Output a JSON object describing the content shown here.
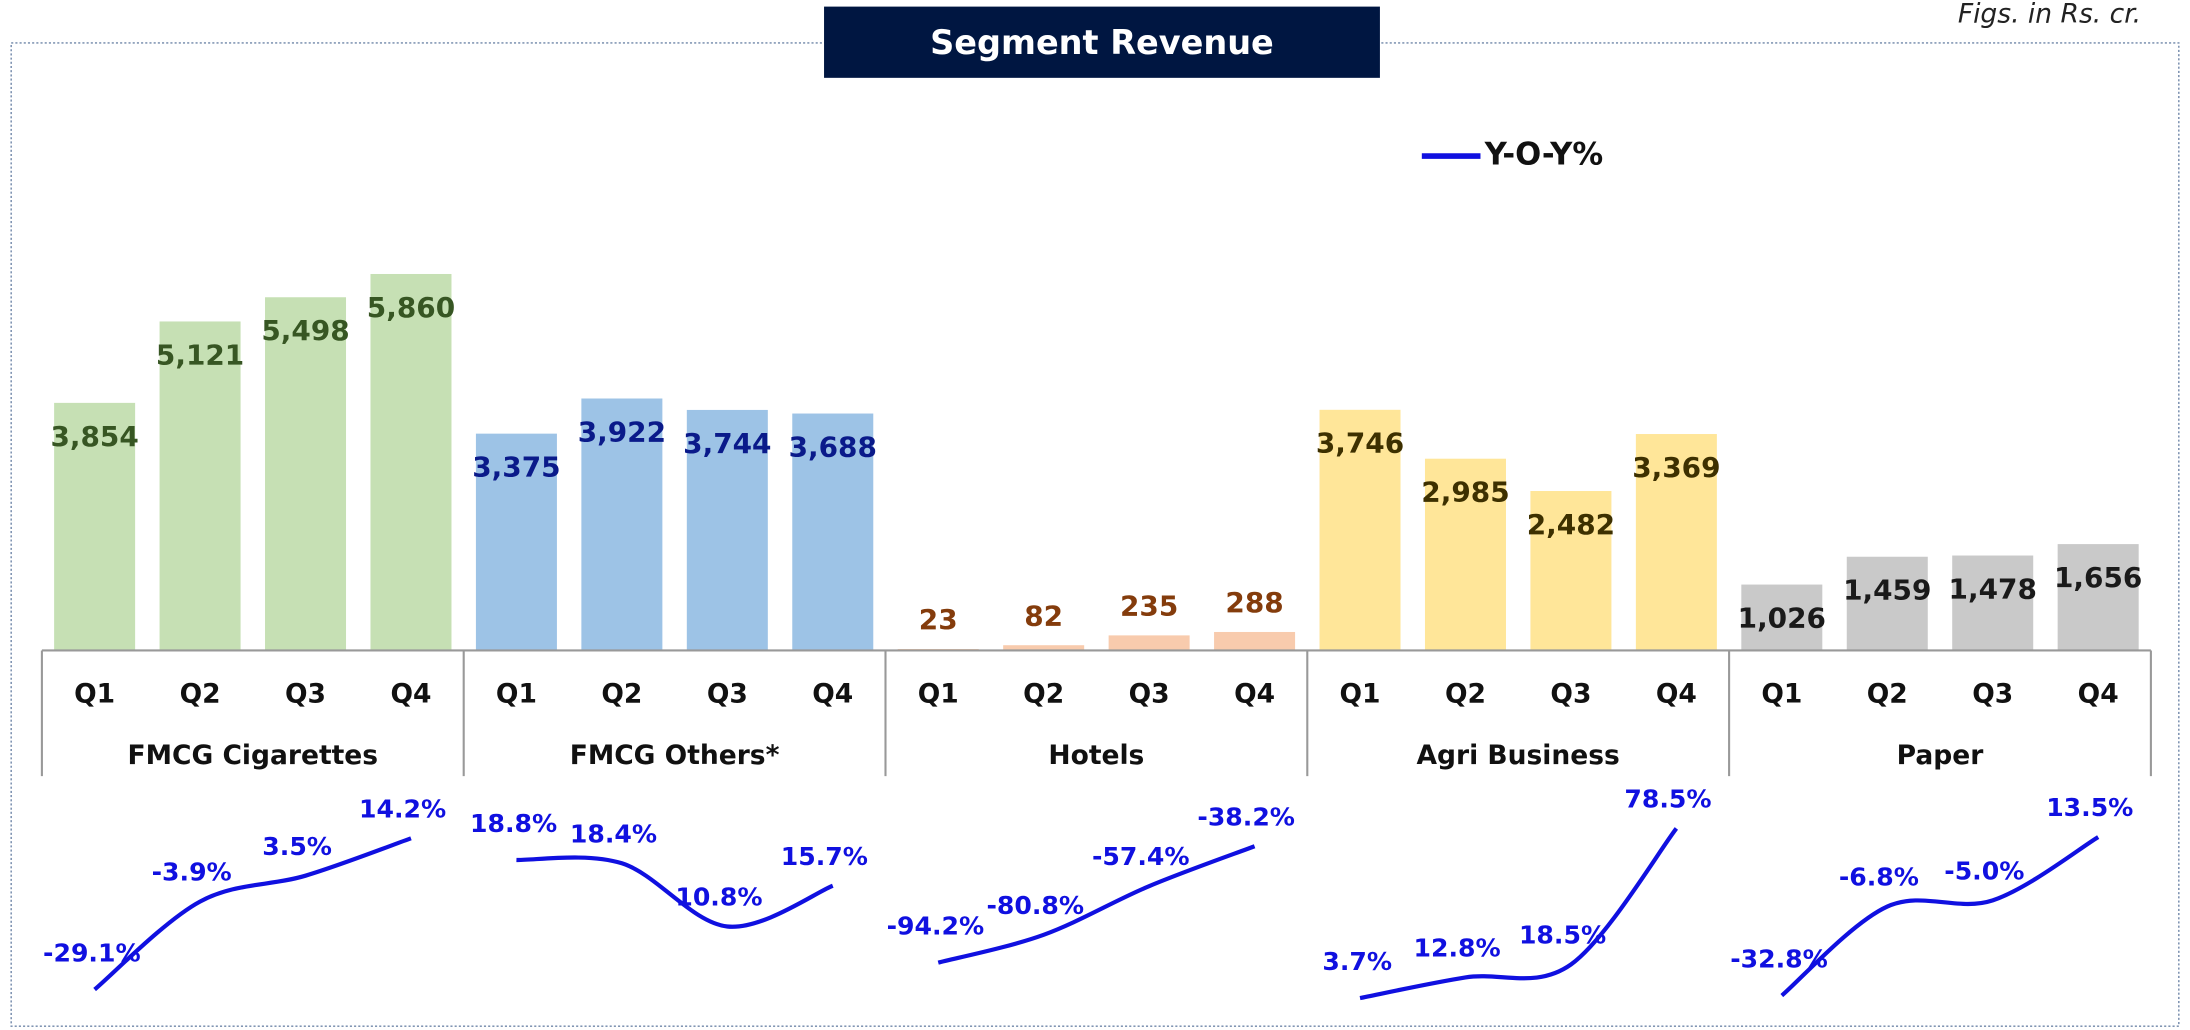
{
  "chart_data": {
    "type": "bar",
    "title": "Segment Revenue",
    "note": "Figs. in Rs. cr.",
    "legend": "Y-O-Y%",
    "line_color": "#1010e0",
    "ylim": [
      0,
      6000
    ],
    "groups": [
      {
        "name": "FMCG Cigarettes",
        "color": "#c6e0b4",
        "label_color": "#375623",
        "categories": [
          "Q1",
          "Q2",
          "Q3",
          "Q4"
        ],
        "values": [
          3854,
          5121,
          5498,
          5860
        ],
        "value_labels": [
          "3,854",
          "5,121",
          "5,498",
          "5,860"
        ],
        "yoy": [
          -29.1,
          -3.9,
          3.5,
          14.2
        ],
        "yoy_labels": [
          "-29.1%",
          "-3.9%",
          "3.5%",
          "14.2%"
        ],
        "yoy_ylim": [
          -32,
          18
        ]
      },
      {
        "name": "FMCG Others*",
        "color": "#9dc3e6",
        "label_color": "#0a1a8a",
        "categories": [
          "Q1",
          "Q2",
          "Q3",
          "Q4"
        ],
        "values": [
          3375,
          3922,
          3744,
          3688
        ],
        "value_labels": [
          "3,375",
          "3,922",
          "3,744",
          "3,688"
        ],
        "yoy": [
          18.8,
          18.4,
          10.8,
          15.7
        ],
        "yoy_labels": [
          "18.8%",
          "18.4%",
          "10.8%",
          "15.7%"
        ],
        "yoy_ylim": [
          2,
          23
        ]
      },
      {
        "name": "Hotels",
        "color": "#f8cbad",
        "label_color": "#843c0c",
        "categories": [
          "Q1",
          "Q2",
          "Q3",
          "Q4"
        ],
        "values": [
          23,
          82,
          235,
          288
        ],
        "value_labels": [
          "23",
          "82",
          "235",
          "288"
        ],
        "yoy": [
          -94.2,
          -80.8,
          -57.4,
          -38.2
        ],
        "yoy_labels": [
          "-94.2%",
          "-80.8%",
          "-57.4%",
          "-38.2%"
        ],
        "yoy_ylim": [
          -112,
          -28
        ]
      },
      {
        "name": "Agri Business",
        "color": "#ffe699",
        "label_color": "#3d3000",
        "categories": [
          "Q1",
          "Q2",
          "Q3",
          "Q4"
        ],
        "values": [
          3746,
          2985,
          2482,
          3369
        ],
        "value_labels": [
          "3,746",
          "2,985",
          "2,482",
          "3,369"
        ],
        "yoy": [
          3.7,
          12.8,
          18.5,
          78.5
        ],
        "yoy_labels": [
          "3.7%",
          "12.8%",
          "18.5%",
          "78.5%"
        ],
        "yoy_ylim": [
          3,
          80
        ]
      },
      {
        "name": "Paper",
        "color": "#c9c9c9",
        "label_color": "#1a1a1a",
        "categories": [
          "Q1",
          "Q2",
          "Q3",
          "Q4"
        ],
        "values": [
          1026,
          1459,
          1478,
          1656
        ],
        "value_labels": [
          "1,026",
          "1,459",
          "1,478",
          "1,656"
        ],
        "yoy": [
          -32.8,
          -6.8,
          -5.0,
          13.5
        ],
        "yoy_labels": [
          "-32.8%",
          "-6.8%",
          "-5.0%",
          "13.5%"
        ],
        "yoy_ylim": [
          -34,
          17
        ]
      }
    ]
  }
}
